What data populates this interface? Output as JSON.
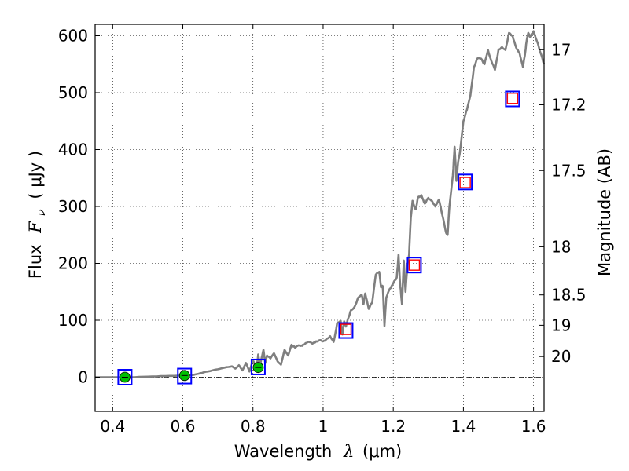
{
  "chart_data": {
    "type": "line",
    "xlabel": {
      "prefix": "Wavelength",
      "symbol": "λ",
      "units": "(μm)"
    },
    "ylabel": {
      "prefix": "Flux",
      "symbol": "F",
      "subscript": "ν",
      "units": "( μJy )"
    },
    "ylabel_right": "Magnitude (AB)",
    "xlim": [
      0.35,
      1.63
    ],
    "ylim": [
      -60,
      620
    ],
    "x_ticks": [
      {
        "value": 0.4,
        "label": "0.4"
      },
      {
        "value": 0.6,
        "label": "0.6"
      },
      {
        "value": 0.8,
        "label": "0.8"
      },
      {
        "value": 1.0,
        "label": "1"
      },
      {
        "value": 1.2,
        "label": "1.2"
      },
      {
        "value": 1.4,
        "label": "1.4"
      },
      {
        "value": 1.6,
        "label": "1.6"
      }
    ],
    "y_ticks": [
      {
        "value": 0,
        "label": "0"
      },
      {
        "value": 100,
        "label": "100"
      },
      {
        "value": 200,
        "label": "200"
      },
      {
        "value": 300,
        "label": "300"
      },
      {
        "value": 400,
        "label": "400"
      },
      {
        "value": 500,
        "label": "500"
      },
      {
        "value": 600,
        "label": "600"
      }
    ],
    "right_ticks": [
      {
        "value": 17,
        "label": "17"
      },
      {
        "value": 17.2,
        "label": "17.2"
      },
      {
        "value": 17.5,
        "label": "17.5"
      },
      {
        "value": 18,
        "label": "18"
      },
      {
        "value": 18.5,
        "label": "18.5"
      },
      {
        "value": 19,
        "label": "19"
      },
      {
        "value": 20,
        "label": "20"
      }
    ],
    "grid": true,
    "zero_line": true,
    "series": [
      {
        "type": "line",
        "color": "#7f7f7f",
        "x": [
          0.35,
          0.4,
          0.45,
          0.5,
          0.55,
          0.6,
          0.63,
          0.65,
          0.67,
          0.7,
          0.72,
          0.74,
          0.75,
          0.76,
          0.77,
          0.78,
          0.79,
          0.8,
          0.81,
          0.815,
          0.82,
          0.825,
          0.83,
          0.835,
          0.84,
          0.85,
          0.86,
          0.87,
          0.88,
          0.89,
          0.9,
          0.91,
          0.92,
          0.93,
          0.94,
          0.95,
          0.96,
          0.97,
          0.98,
          0.99,
          1.0,
          1.01,
          1.02,
          1.03,
          1.04,
          1.05,
          1.055,
          1.06,
          1.065,
          1.07,
          1.08,
          1.09,
          1.1,
          1.11,
          1.115,
          1.12,
          1.13,
          1.14,
          1.15,
          1.16,
          1.165,
          1.17,
          1.175,
          1.18,
          1.19,
          1.2,
          1.21,
          1.215,
          1.22,
          1.225,
          1.23,
          1.235,
          1.24,
          1.245,
          1.25,
          1.255,
          1.26,
          1.265,
          1.27,
          1.28,
          1.29,
          1.3,
          1.31,
          1.32,
          1.33,
          1.34,
          1.35,
          1.355,
          1.36,
          1.37,
          1.375,
          1.38,
          1.385,
          1.39,
          1.4,
          1.41,
          1.42,
          1.43,
          1.44,
          1.45,
          1.46,
          1.47,
          1.48,
          1.49,
          1.5,
          1.51,
          1.52,
          1.53,
          1.54,
          1.55,
          1.56,
          1.57,
          1.575,
          1.58,
          1.585,
          1.59,
          1.6,
          1.61,
          1.62,
          1.63
        ],
        "y": [
          0,
          0,
          0,
          1,
          2,
          3,
          4,
          7,
          10,
          14,
          17,
          19,
          15,
          21,
          12,
          25,
          10,
          30,
          15,
          40,
          20,
          35,
          48,
          25,
          38,
          33,
          42,
          28,
          22,
          48,
          38,
          57,
          52,
          56,
          55,
          60,
          62,
          59,
          63,
          65,
          63,
          67,
          72,
          62,
          95,
          99,
          75,
          98,
          89,
          101,
          118,
          124,
          140,
          145,
          128,
          147,
          120,
          131,
          180,
          185,
          158,
          160,
          90,
          140,
          155,
          165,
          175,
          215,
          160,
          128,
          205,
          150,
          195,
          215,
          280,
          310,
          300,
          295,
          315,
          320,
          305,
          315,
          310,
          300,
          312,
          285,
          255,
          250,
          300,
          355,
          405,
          345,
          378,
          395,
          450,
          470,
          495,
          545,
          560,
          560,
          550,
          575,
          555,
          540,
          575,
          580,
          575,
          605,
          600,
          580,
          570,
          545,
          565,
          590,
          605,
          598,
          608,
          590,
          570,
          550
        ],
        "noise_amplitude": 2.5
      }
    ],
    "markers": [
      {
        "type": "square-outline",
        "color": "#0000ff",
        "x": [
          0.435,
          0.605,
          0.815,
          1.065,
          1.26,
          1.405,
          1.54
        ],
        "y": [
          0,
          2,
          18,
          82,
          197,
          343,
          489
        ]
      },
      {
        "type": "circle-filled",
        "color": "#00bf00",
        "x": [
          0.435,
          0.605,
          0.815
        ],
        "y": [
          0,
          3,
          17
        ]
      },
      {
        "type": "square-outline-small",
        "color": "#ff0000",
        "x": [
          1.065,
          1.26,
          1.405,
          1.54
        ],
        "y": [
          84,
          197,
          342,
          490
        ]
      }
    ],
    "colors": {
      "line": "#7f7f7f",
      "blue_marker": "#0000ff",
      "green_marker": "#00bf00",
      "red_marker": "#ff0000"
    }
  }
}
